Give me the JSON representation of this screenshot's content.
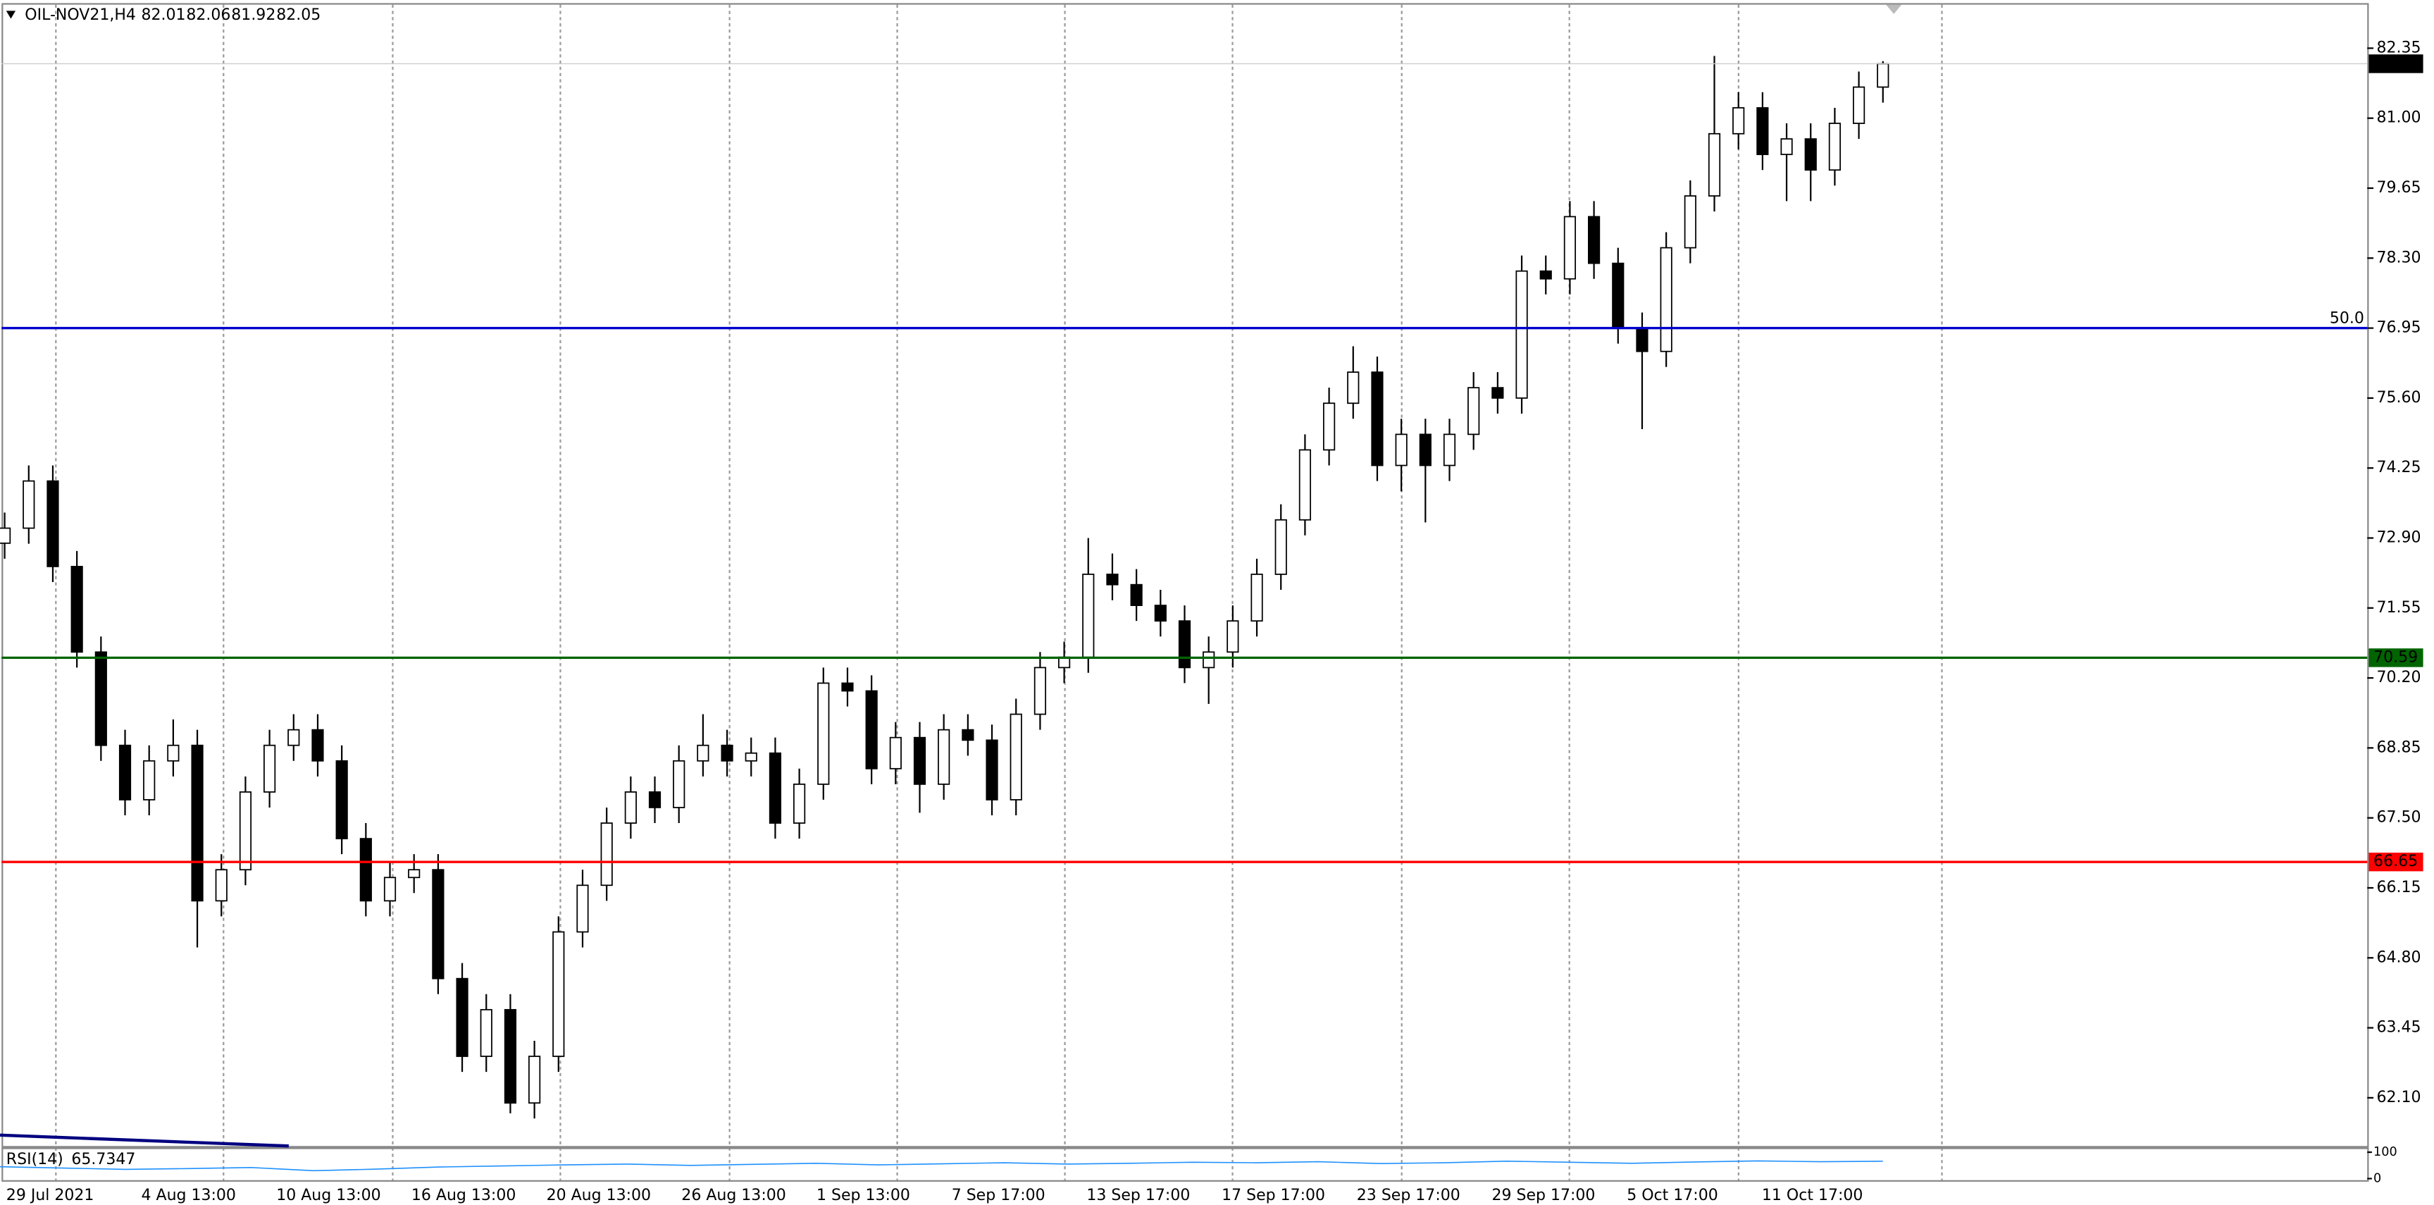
{
  "chart_data": {
    "type": "candlestick",
    "title": "OIL-NOV21,H4",
    "last_bar": {
      "open": 82.01,
      "high": 82.06,
      "low": 81.92,
      "close": 82.05
    },
    "categories": [
      "29 Jul 2021",
      "4 Aug 13:00",
      "10 Aug 13:00",
      "16 Aug 13:00",
      "20 Aug 13:00",
      "26 Aug 13:00",
      "1 Sep 13:00",
      "7 Sep 17:00",
      "13 Sep 17:00",
      "17 Sep 17:00",
      "23 Sep 17:00",
      "29 Sep 17:00",
      "5 Oct 17:00",
      "11 Oct 17:00"
    ],
    "open": [
      72.8,
      73.09,
      74.0,
      72.35,
      70.7,
      68.9,
      67.85,
      68.6,
      68.9,
      65.9,
      66.5,
      68.0,
      68.9,
      69.2,
      68.6,
      67.1,
      65.9,
      66.35,
      66.5,
      64.4,
      62.9,
      63.8,
      62.0,
      62.9,
      65.3,
      66.2,
      67.4,
      68.0,
      67.7,
      68.6,
      68.9,
      68.6,
      68.75,
      67.4,
      68.15,
      70.1,
      69.95,
      68.45,
      69.05,
      68.15,
      69.2,
      69.0,
      67.85,
      69.5,
      70.4,
      70.6,
      72.2,
      72.0,
      71.6,
      71.3,
      70.4,
      70.7,
      71.3,
      72.2,
      73.25,
      74.6,
      75.5,
      76.1,
      74.3,
      74.9,
      74.3,
      74.9,
      75.8,
      75.6,
      78.05,
      77.9,
      79.1,
      78.2,
      76.95,
      76.5,
      78.5,
      79.5,
      80.7,
      81.2,
      80.3,
      80.6,
      80.0,
      80.9,
      81.6
    ],
    "high": [
      73.39,
      74.3,
      74.3,
      72.65,
      71.0,
      69.2,
      68.9,
      69.4,
      69.2,
      66.8,
      68.3,
      69.2,
      69.5,
      69.5,
      68.9,
      67.4,
      66.65,
      66.8,
      66.8,
      64.7,
      64.1,
      64.1,
      63.2,
      65.6,
      66.5,
      67.7,
      68.3,
      68.3,
      68.9,
      69.5,
      69.2,
      69.05,
      69.05,
      68.45,
      70.4,
      70.4,
      70.25,
      69.35,
      69.35,
      69.5,
      69.5,
      69.3,
      69.8,
      70.7,
      70.9,
      72.9,
      72.6,
      72.3,
      71.9,
      71.6,
      71.0,
      71.6,
      72.5,
      73.55,
      74.9,
      75.8,
      76.6,
      76.4,
      75.2,
      75.2,
      75.2,
      76.1,
      76.1,
      78.35,
      78.35,
      79.4,
      79.4,
      78.5,
      77.25,
      78.8,
      79.8,
      82.2,
      81.5,
      81.5,
      80.9,
      80.9,
      81.2,
      81.9,
      82.1
    ],
    "low": [
      72.5,
      72.79,
      72.05,
      70.4,
      68.6,
      67.55,
      67.55,
      68.3,
      65.0,
      65.6,
      66.2,
      67.7,
      68.6,
      68.3,
      66.8,
      65.6,
      65.6,
      66.05,
      64.1,
      62.6,
      62.6,
      61.8,
      61.7,
      62.6,
      65.0,
      65.9,
      67.1,
      67.4,
      67.4,
      68.3,
      68.3,
      68.3,
      67.1,
      67.1,
      67.85,
      69.65,
      68.15,
      68.15,
      67.6,
      67.85,
      68.7,
      67.55,
      67.55,
      69.2,
      70.1,
      70.3,
      71.7,
      71.3,
      71.0,
      70.1,
      69.7,
      70.4,
      71.0,
      71.9,
      72.95,
      74.3,
      75.2,
      74.0,
      73.8,
      73.2,
      74.0,
      74.6,
      75.3,
      75.3,
      77.6,
      77.6,
      77.9,
      76.65,
      75.0,
      76.2,
      78.2,
      79.2,
      80.4,
      80.0,
      79.4,
      79.4,
      79.7,
      80.6,
      81.3
    ],
    "close": [
      73.09,
      74.0,
      72.35,
      70.7,
      68.9,
      67.85,
      68.6,
      68.9,
      65.9,
      66.5,
      68.0,
      68.9,
      69.2,
      68.6,
      67.1,
      65.9,
      66.35,
      66.5,
      64.4,
      62.9,
      63.8,
      62.0,
      62.9,
      65.3,
      66.2,
      67.4,
      68.0,
      67.7,
      68.6,
      68.9,
      68.6,
      68.75,
      67.4,
      68.15,
      70.1,
      69.95,
      68.45,
      69.05,
      68.15,
      69.2,
      69.0,
      67.85,
      69.5,
      70.4,
      70.6,
      72.2,
      72.0,
      71.6,
      71.3,
      70.4,
      70.7,
      71.3,
      72.2,
      73.25,
      74.6,
      75.5,
      76.1,
      74.3,
      74.9,
      74.3,
      74.9,
      75.8,
      75.6,
      78.05,
      77.9,
      79.1,
      78.2,
      76.95,
      76.5,
      78.5,
      79.5,
      80.7,
      81.2,
      80.3,
      80.6,
      80.0,
      80.9,
      81.6,
      82.05
    ],
    "ylim": [
      61.17,
      83.19
    ],
    "yticks": [
      82.35,
      {
        "value": 81,
        "label": "81.00"
      },
      79.65,
      {
        "value": 78.3,
        "label": "78.30"
      },
      76.95,
      {
        "value": 75.6,
        "label": "75.60"
      },
      74.25,
      {
        "value": 72.9,
        "label": "72.90"
      },
      71.55,
      {
        "value": 70.2,
        "label": "70.20"
      },
      68.85,
      {
        "value": 67.5,
        "label": "67.50"
      },
      66.15,
      {
        "value": 64.8,
        "label": "64.80"
      },
      63.45,
      {
        "value": 62.1,
        "label": "62.10"
      }
    ],
    "levels": [
      {
        "value": 76.95,
        "label": "50.0",
        "color": "#0000cc"
      },
      {
        "value": 70.59,
        "color": "#006400"
      },
      {
        "value": 66.65,
        "color": "#ff0000"
      }
    ],
    "rsi": {
      "name": "RSI(14)",
      "last": 65.7347,
      "ylim": [
        0,
        100
      ],
      "yticks": [
        0,
        100
      ],
      "color": "#1e90ff",
      "values": [
        45,
        40,
        35,
        38,
        42,
        30,
        36,
        44,
        48,
        52,
        55,
        50,
        54,
        58,
        52,
        56,
        60,
        55,
        58,
        62,
        60,
        64,
        57,
        60,
        66,
        62,
        58,
        63,
        67,
        64,
        65.7347
      ]
    }
  }
}
